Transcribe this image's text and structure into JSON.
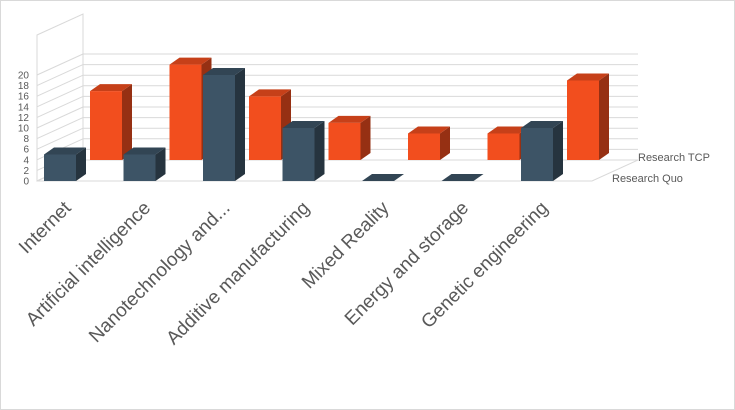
{
  "chart_data": {
    "type": "bar",
    "title": "",
    "xlabel": "",
    "ylabel": "",
    "ylim": [
      0,
      20
    ],
    "yticks": [
      0,
      2,
      4,
      6,
      8,
      10,
      12,
      14,
      16,
      18,
      20
    ],
    "grid": true,
    "categories": [
      "Internet",
      "Artificial intelligence",
      "Nanotechnology and...",
      "Additive manufacturing",
      "Mixed Reality",
      "Energy and storage",
      "Genetic engineering"
    ],
    "series": [
      {
        "name": "Research Quo",
        "color": "#3d5466",
        "values": [
          5,
          5,
          20,
          10,
          0,
          0,
          10
        ]
      },
      {
        "name": "Research TCP",
        "color": "#f24e1e",
        "values": [
          13,
          18,
          12,
          7,
          5,
          5,
          15
        ]
      }
    ]
  }
}
